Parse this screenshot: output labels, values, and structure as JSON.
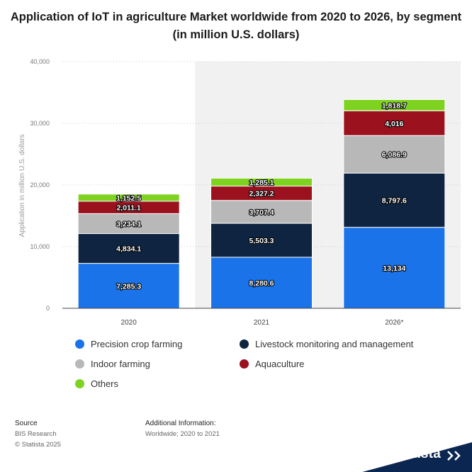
{
  "title": {
    "line1": "Application of IoT in agriculture Market worldwide from 2020 to 2026, by segment",
    "line2": "(in million U.S. dollars)"
  },
  "colors": {
    "precision": "#1a73e8",
    "livestock": "#0f2440",
    "indoor": "#b8b8b8",
    "aquaculture": "#9b111e",
    "others": "#7ed321",
    "column_highlight": "#f1f1f1"
  },
  "chart_data": {
    "type": "bar",
    "stacked": true,
    "title": "Application of IoT in agriculture Market worldwide from 2020 to 2026, by segment (in million U.S. dollars)",
    "xlabel": "",
    "ylabel": "Application in million U.S. dollars",
    "ylim": [
      0,
      40000
    ],
    "yticks": [
      0,
      10000,
      20000,
      30000,
      40000
    ],
    "ytick_labels": [
      "0",
      "10,000",
      "20,000",
      "30,000",
      "40,000"
    ],
    "categories": [
      "2020",
      "2021",
      "2026*"
    ],
    "series": [
      {
        "name": "Precision crop farming",
        "color": "#1a73e8",
        "values": [
          7285.3,
          8280.6,
          13134
        ],
        "labels": [
          "7,285.3",
          "8,280.6",
          "13,134"
        ]
      },
      {
        "name": "Livestock monitoring and management",
        "color": "#0f2440",
        "values": [
          4834.1,
          5503.3,
          8797.6
        ],
        "labels": [
          "4,834.1",
          "5,503.3",
          "8,797.6"
        ]
      },
      {
        "name": "Indoor farming",
        "color": "#b8b8b8",
        "values": [
          3234.1,
          3707.4,
          6086.9
        ],
        "labels": [
          "3,234.1",
          "3,707.4",
          "6,086.9"
        ]
      },
      {
        "name": "Aquaculture",
        "color": "#9b111e",
        "values": [
          2011.1,
          2327.2,
          4016
        ],
        "labels": [
          "2,011.1",
          "2,327.2",
          "4,016"
        ]
      },
      {
        "name": "Others",
        "color": "#7ed321",
        "values": [
          1152.5,
          1285.1,
          1818.7
        ],
        "labels": [
          "1,152.5",
          "1,285.1",
          "1,818.7"
        ]
      }
    ],
    "legend_position": "bottom"
  },
  "legend": [
    {
      "label": "Precision crop farming",
      "color": "#1a73e8"
    },
    {
      "label": "Livestock monitoring and management",
      "color": "#0f2440"
    },
    {
      "label": "Indoor farming",
      "color": "#b8b8b8"
    },
    {
      "label": "Aquaculture",
      "color": "#9b111e"
    },
    {
      "label": "Others",
      "color": "#7ed321"
    }
  ],
  "footer": {
    "source_heading": "Source",
    "source_name": "BIS Research",
    "copyright": "© Statista 2025",
    "info_heading": "Additional Information:",
    "info_text": "Worldwide; 2020 to 2021"
  },
  "brand": {
    "name": "statista"
  }
}
